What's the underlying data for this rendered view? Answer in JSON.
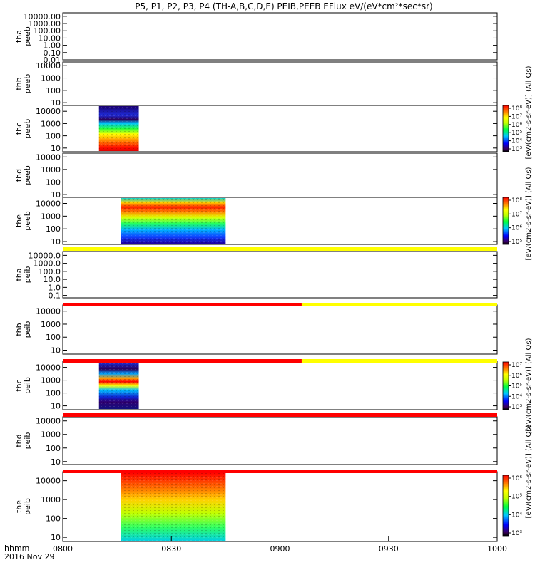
{
  "title": "P5, P1, P2, P3, P4 (TH-A,B,C,D,E) PEIB,PEEB EFlux eV/(eV*cm²*sec*sr)",
  "time_axis": {
    "tick_labels": [
      "0800",
      "0830",
      "0900",
      "0930",
      "1000"
    ],
    "format_label": "hhmm",
    "date_label": "2016 Nov 29"
  },
  "colors": {
    "status_yellow": "#ffff00",
    "status_red": "#ff0000"
  },
  "colorbars": [
    {
      "label": "[eV/(cm2-s-sr-eV)] (All Qs)",
      "tick_labels": [
        "10⁸",
        "10⁷",
        "10⁶",
        "10⁵",
        "10⁴",
        "10³"
      ]
    },
    {
      "label": "[eV/(cm2-s-sr-eV)] (All Qs)",
      "tick_labels": [
        "10⁸",
        "10⁷",
        "10⁶",
        "10⁵"
      ]
    },
    {
      "label": "[eV/(cm2-s-sr-eV)] (All Qs)",
      "tick_labels": [
        "10⁷",
        "10⁶",
        "10⁵",
        "10⁴",
        "10³"
      ]
    },
    {
      "label": "[eV/(cm2-s-sr-eV)] (All Qs)",
      "tick_labels": [
        "10⁶",
        "10⁵",
        "10⁴",
        "10³"
      ]
    }
  ],
  "chart_data": {
    "type": "heatmap",
    "x_range": [
      "0800",
      "1000"
    ],
    "panels": [
      {
        "label": [
          "tha",
          "peeb"
        ],
        "ytick_labels": [
          "10000.00",
          "1000.00",
          "100.00",
          "10.00",
          "1.00",
          "0.10",
          "0.01"
        ],
        "ytick_values": [
          10000,
          1000,
          100,
          10,
          1,
          0.1,
          0.01
        ],
        "ylim": [
          0.01,
          30000
        ],
        "log_y": true,
        "data_blocks": []
      },
      {
        "label": [
          "thb",
          "peeb"
        ],
        "ytick_labels": [
          "10000",
          "1000",
          "100",
          "10"
        ],
        "ytick_values": [
          10000,
          1000,
          100,
          10
        ],
        "ylim": [
          6,
          20000
        ],
        "log_y": true,
        "data_blocks": []
      },
      {
        "label": [
          "thc",
          "peeb"
        ],
        "ytick_labels": [
          "10000",
          "1000",
          "100",
          "10"
        ],
        "ytick_values": [
          10000,
          1000,
          100,
          10
        ],
        "ylim": [
          5,
          30000
        ],
        "log_y": true,
        "data_blocks": [
          {
            "x_start": "0810",
            "x_end": "0821",
            "style": "peeb_c"
          }
        ]
      },
      {
        "label": [
          "thd",
          "peeb"
        ],
        "ytick_labels": [
          "10000",
          "1000",
          "100",
          "10"
        ],
        "ytick_values": [
          10000,
          1000,
          100,
          10
        ],
        "ylim": [
          6,
          20000
        ],
        "log_y": true,
        "data_blocks": []
      },
      {
        "label": [
          "the",
          "peeb"
        ],
        "ytick_labels": [
          "10000",
          "1000",
          "100",
          "10"
        ],
        "ytick_values": [
          10000,
          1000,
          100,
          10
        ],
        "ylim": [
          6,
          30000
        ],
        "log_y": true,
        "data_blocks": [
          {
            "x_start": "0816",
            "x_end": "0845",
            "style": "peeb_e"
          }
        ]
      },
      {
        "label": [
          "tha",
          "peib"
        ],
        "ytick_labels": [
          "10000.0",
          "1000.0",
          "100.0",
          "10.0",
          "1.0",
          "0.1"
        ],
        "ytick_values": [
          10000,
          1000,
          100,
          10,
          1,
          0.1
        ],
        "ylim": [
          0.05,
          30000
        ],
        "log_y": true,
        "data_blocks": []
      },
      {
        "label": [
          "thb",
          "peib"
        ],
        "ytick_labels": [
          "10000",
          "1000",
          "100",
          "10"
        ],
        "ytick_values": [
          10000,
          1000,
          100,
          10
        ],
        "ylim": [
          5,
          30000
        ],
        "log_y": true,
        "data_blocks": []
      },
      {
        "label": [
          "thc",
          "peib"
        ],
        "ytick_labels": [
          "10000",
          "1000",
          "100",
          "10"
        ],
        "ytick_values": [
          10000,
          1000,
          100,
          10
        ],
        "ylim": [
          5,
          30000
        ],
        "log_y": true,
        "data_blocks": [
          {
            "x_start": "0810",
            "x_end": "0821",
            "style": "peib_c"
          }
        ]
      },
      {
        "label": [
          "thd",
          "peib"
        ],
        "ytick_labels": [
          "10000",
          "1000",
          "100",
          "10"
        ],
        "ytick_values": [
          10000,
          1000,
          100,
          10
        ],
        "ylim": [
          6,
          20000
        ],
        "log_y": true,
        "data_blocks": []
      },
      {
        "label": [
          "the",
          "peib"
        ],
        "ytick_labels": [
          "10000",
          "1000",
          "100",
          "10"
        ],
        "ytick_values": [
          10000,
          1000,
          100,
          10
        ],
        "ylim": [
          6,
          30000
        ],
        "log_y": true,
        "data_blocks": [
          {
            "x_start": "0816",
            "x_end": "0845",
            "style": "peib_e"
          }
        ]
      }
    ],
    "status_bars": [
      {
        "after_panel": 4,
        "segments": [
          {
            "x_start": "0800",
            "x_end": "1000",
            "color": "yellow"
          }
        ]
      },
      {
        "after_panel": 5,
        "segments": [
          {
            "x_start": "0800",
            "x_end": "0906",
            "color": "red"
          },
          {
            "x_start": "0906",
            "x_end": "1000",
            "color": "yellow"
          }
        ]
      },
      {
        "after_panel": 6,
        "segments": [
          {
            "x_start": "0800",
            "x_end": "0906",
            "color": "red"
          },
          {
            "x_start": "0906",
            "x_end": "1000",
            "color": "yellow"
          }
        ]
      },
      {
        "after_panel": 7,
        "segments": [
          {
            "x_start": "0800",
            "x_end": "1000",
            "color": "red"
          }
        ]
      },
      {
        "after_panel": 8,
        "segments": [
          {
            "x_start": "0800",
            "x_end": "1000",
            "color": "red"
          }
        ]
      }
    ]
  }
}
